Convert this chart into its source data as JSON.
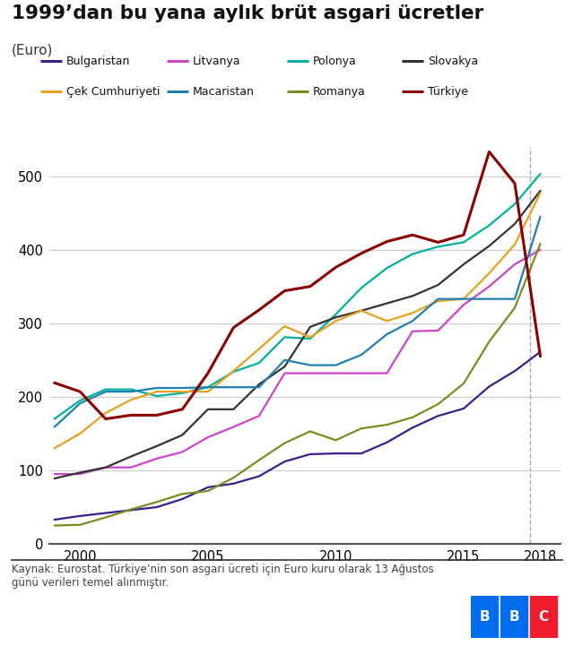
{
  "title": "1999’dan bu yana aylık brüt asgari ücretler",
  "subtitle": "(Euro)",
  "footnote": "Kaynak: Eurostat. Türkiye’nin son asgari ücreti için Euro kuru olarak 13 Ağustos\ngünü verileri temel alınmıştır.",
  "dashed_line_x": 2017.6,
  "series": {
    "Bulgaristan": {
      "color": "#3d1c8e",
      "years": [
        1999,
        2000,
        2001,
        2002,
        2003,
        2004,
        2005,
        2006,
        2007,
        2008,
        2009,
        2010,
        2011,
        2012,
        2013,
        2014,
        2015,
        2016,
        2017,
        2018
      ],
      "values": [
        33,
        38,
        42,
        46,
        50,
        61,
        77,
        82,
        92,
        112,
        122,
        123,
        123,
        138,
        158,
        174,
        184,
        214,
        235,
        261
      ]
    },
    "Litvanya": {
      "color": "#cc44cc",
      "years": [
        1999,
        2000,
        2001,
        2002,
        2003,
        2004,
        2005,
        2006,
        2007,
        2008,
        2009,
        2010,
        2011,
        2012,
        2013,
        2014,
        2015,
        2016,
        2017,
        2018
      ],
      "values": [
        95,
        95,
        104,
        104,
        116,
        125,
        145,
        159,
        174,
        232,
        232,
        232,
        232,
        232,
        289,
        290,
        325,
        350,
        380,
        400
      ]
    },
    "Polonya": {
      "color": "#00b0a0",
      "years": [
        1999,
        2000,
        2001,
        2002,
        2003,
        2004,
        2005,
        2006,
        2007,
        2008,
        2009,
        2010,
        2011,
        2012,
        2013,
        2014,
        2015,
        2016,
        2017,
        2018
      ],
      "values": [
        170,
        195,
        210,
        210,
        201,
        205,
        213,
        234,
        246,
        281,
        279,
        312,
        348,
        375,
        394,
        404,
        410,
        433,
        462,
        503
      ]
    },
    "Slovakya": {
      "color": "#333333",
      "years": [
        1999,
        2000,
        2001,
        2002,
        2003,
        2004,
        2005,
        2006,
        2007,
        2008,
        2009,
        2010,
        2011,
        2012,
        2013,
        2014,
        2015,
        2016,
        2017,
        2018
      ],
      "values": [
        89,
        97,
        104,
        119,
        133,
        148,
        183,
        183,
        217,
        241,
        295,
        308,
        317,
        327,
        337,
        352,
        380,
        405,
        435,
        480
      ]
    },
    "Çek Cumhuriyeti": {
      "color": "#e8a020",
      "years": [
        1999,
        2000,
        2001,
        2002,
        2003,
        2004,
        2005,
        2006,
        2007,
        2008,
        2009,
        2010,
        2011,
        2012,
        2013,
        2014,
        2015,
        2016,
        2017,
        2018
      ],
      "values": [
        130,
        150,
        178,
        196,
        207,
        207,
        207,
        235,
        265,
        296,
        281,
        303,
        317,
        303,
        314,
        330,
        333,
        368,
        407,
        477
      ]
    },
    "Macaristan": {
      "color": "#2080b0",
      "years": [
        1999,
        2000,
        2001,
        2002,
        2003,
        2004,
        2005,
        2006,
        2007,
        2008,
        2009,
        2010,
        2011,
        2012,
        2013,
        2014,
        2015,
        2016,
        2017,
        2018
      ],
      "values": [
        159,
        191,
        207,
        207,
        212,
        212,
        213,
        213,
        213,
        250,
        243,
        243,
        257,
        285,
        303,
        333,
        333,
        333,
        333,
        445
      ]
    },
    "Romanya": {
      "color": "#7a8c20",
      "years": [
        1999,
        2000,
        2001,
        2002,
        2003,
        2004,
        2005,
        2006,
        2007,
        2008,
        2009,
        2010,
        2011,
        2012,
        2013,
        2014,
        2015,
        2016,
        2017,
        2018
      ],
      "values": [
        25,
        26,
        36,
        47,
        57,
        68,
        72,
        90,
        114,
        137,
        153,
        141,
        157,
        162,
        172,
        190,
        218,
        275,
        321,
        408
      ]
    },
    "Türkiye": {
      "color": "#8b0000",
      "years": [
        1999,
        2000,
        2001,
        2002,
        2003,
        2004,
        2005,
        2006,
        2007,
        2008,
        2009,
        2010,
        2011,
        2012,
        2013,
        2014,
        2015,
        2016,
        2017,
        2018
      ],
      "values": [
        219,
        207,
        170,
        175,
        175,
        183,
        232,
        294,
        318,
        344,
        350,
        376,
        395,
        411,
        420,
        410,
        420,
        533,
        490,
        255
      ]
    }
  },
  "xlim": [
    1998.8,
    2018.8
  ],
  "ylim": [
    0,
    540
  ],
  "xticks": [
    2000,
    2005,
    2010,
    2015,
    2018
  ],
  "yticks": [
    0,
    100,
    200,
    300,
    400,
    500
  ],
  "bg_color": "#ffffff",
  "grid_color": "#cccccc",
  "bbc_colors": [
    "#006def",
    "#006def",
    "#ef1c2d"
  ],
  "legend_row1": [
    "Bulgaristan",
    "Litvanya",
    "Polonya",
    "Slovakya"
  ],
  "legend_row2": [
    "Çek Cumhuriyeti",
    "Macaristan",
    "Romanya",
    "Türkiye"
  ]
}
